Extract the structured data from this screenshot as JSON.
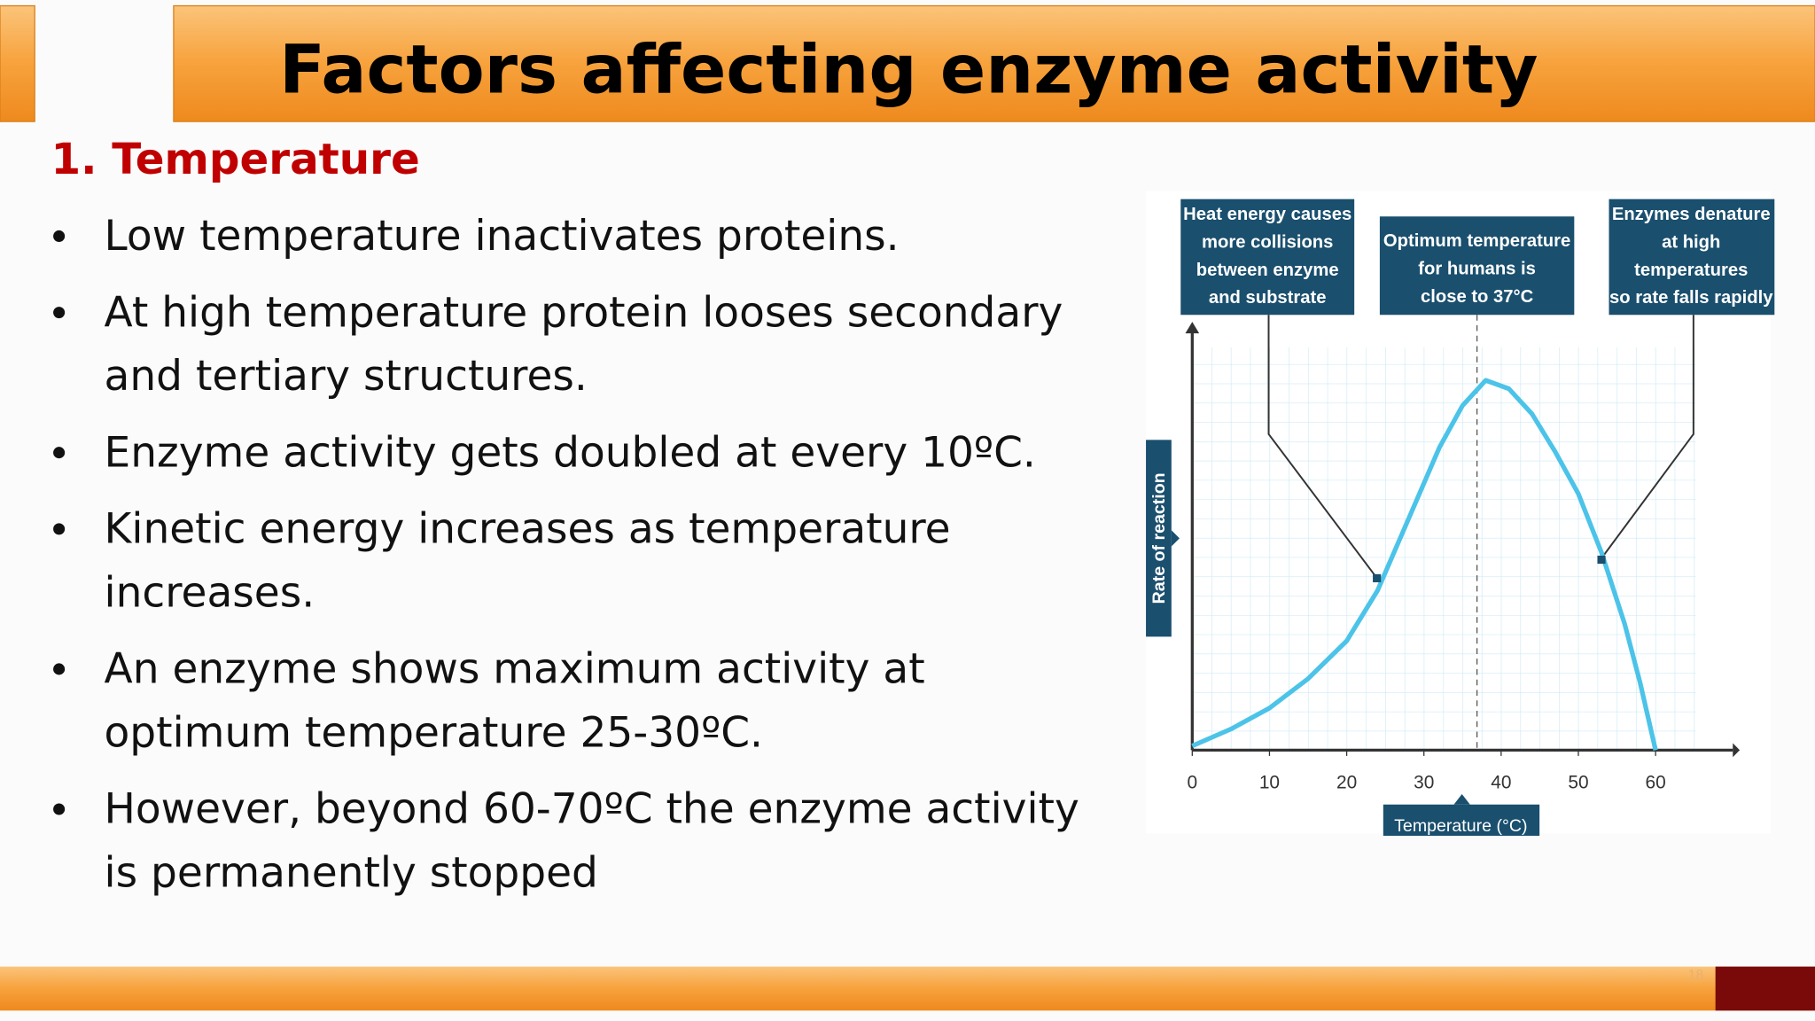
{
  "title": "Factors affecting enzyme activity",
  "section": "1. Temperature",
  "bullets": [
    [
      "Low temperature inactivates proteins."
    ],
    [
      "At high temperature protein looses secondary",
      "and tertiary structures."
    ],
    [
      "Enzyme activity gets doubled at every 10ºC."
    ],
    [
      "Kinetic energy increases as temperature",
      "increases."
    ],
    [
      "An enzyme shows maximum activity at",
      "optimum temperature 25-30ºC."
    ],
    [
      "However, beyond 60-70ºC the enzyme activity",
      "is permanently stopped"
    ]
  ],
  "slide_number": "18",
  "chart_data": {
    "type": "line",
    "x": [
      0,
      5,
      10,
      15,
      20,
      24,
      28,
      32,
      35,
      38,
      41,
      44,
      47,
      50,
      53,
      56,
      58,
      60
    ],
    "values": [
      1,
      5,
      10,
      17,
      26,
      38,
      55,
      72,
      82,
      88,
      86,
      80,
      71,
      61,
      47,
      30,
      16,
      0
    ],
    "color": "#4cc3e8",
    "xlim": [
      0,
      70
    ],
    "xticks": [
      0,
      10,
      20,
      30,
      40,
      50,
      60
    ],
    "ylim": [
      0,
      100
    ],
    "xlabel": "Temperature (°C)",
    "ylabel": "Rate of reaction",
    "annotations": [
      [
        "Heat energy causes",
        "more collisions",
        "between enzyme",
        "and substrate"
      ],
      [
        "Optimum temperature",
        "for humans is",
        "close to 37°C"
      ],
      [
        "Enzymes denature",
        "at high",
        "temperatures",
        "so rate falls rapidly"
      ]
    ]
  }
}
